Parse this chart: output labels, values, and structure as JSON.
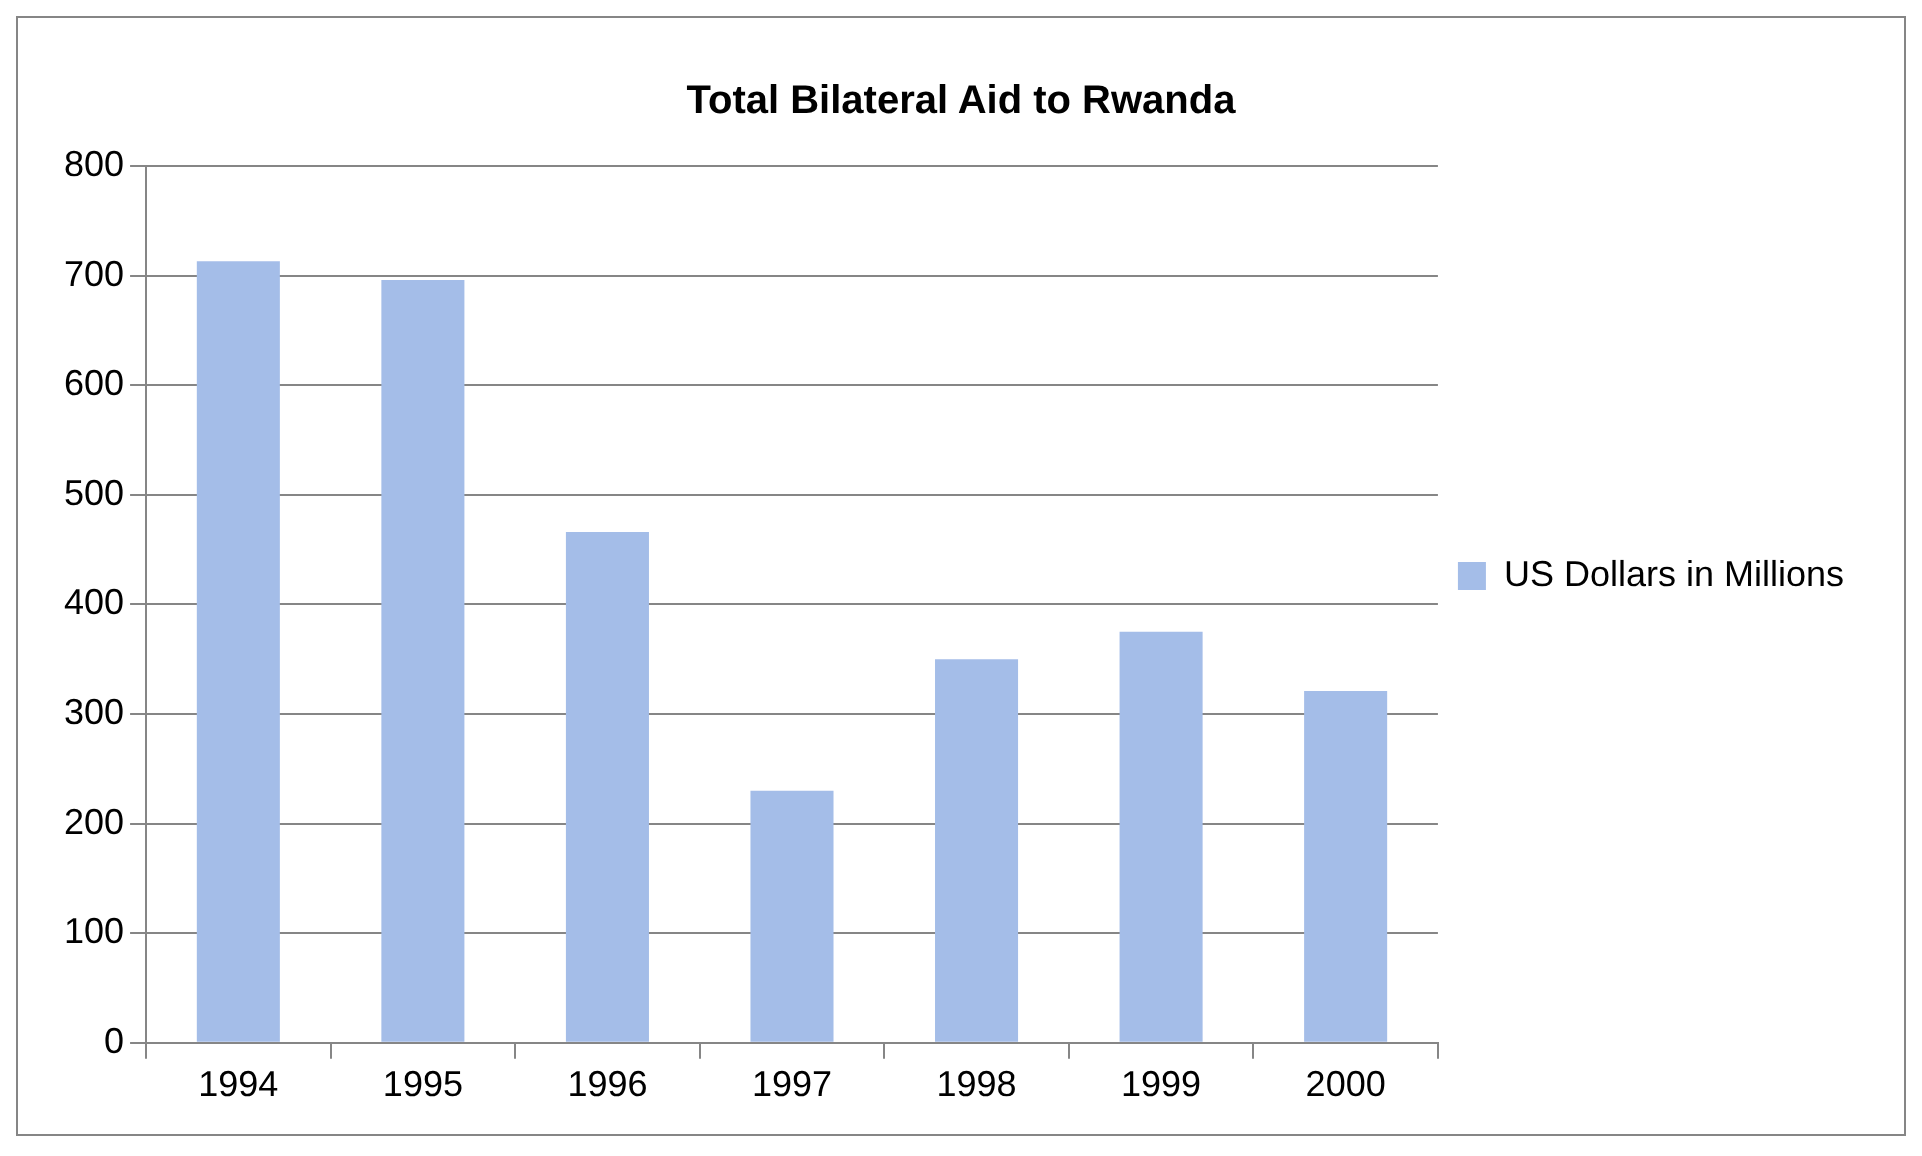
{
  "chart_data": {
    "type": "bar",
    "title": "Total Bilateral Aid to Rwanda",
    "categories": [
      "1994",
      "1995",
      "1996",
      "1997",
      "1998",
      "1999",
      "2000"
    ],
    "series": [
      {
        "name": "US Dollars in Millions",
        "color": "#a4bde8",
        "values": [
          713,
          696,
          466,
          230,
          350,
          375,
          321
        ]
      }
    ],
    "ylim": [
      0,
      800
    ],
    "yticks": [
      0,
      100,
      200,
      300,
      400,
      500,
      600,
      700,
      800
    ],
    "grid": "y",
    "legend": "right"
  }
}
